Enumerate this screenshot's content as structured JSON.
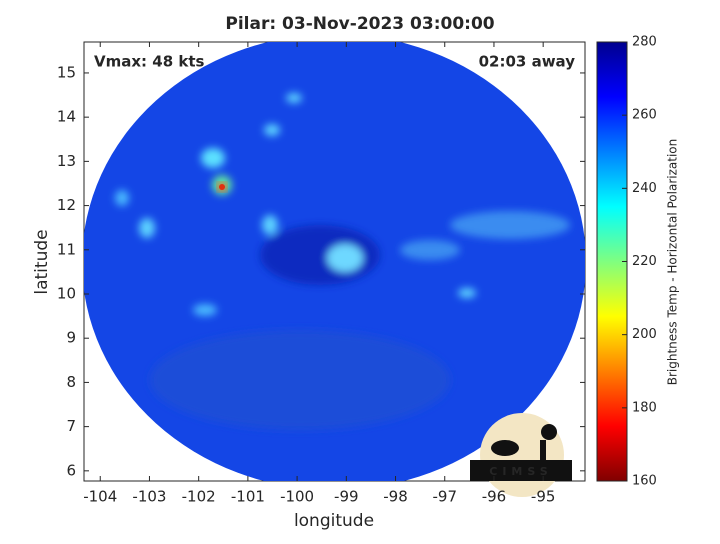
{
  "chart_data": {
    "type": "image-map",
    "title": "Pilar: 03-Nov-2023 03:00:00",
    "annotation_left": "Vmax: 48 kts",
    "annotation_right": "02:03 away",
    "xlabel": "longitude",
    "ylabel": "latitude",
    "xlim": [
      -104.33,
      -94.15
    ],
    "ylim": [
      5.77,
      15.7
    ],
    "xticks": [
      -104,
      -103,
      -102,
      -101,
      -100,
      -99,
      -98,
      -97,
      -96,
      -95
    ],
    "yticks": [
      6,
      7,
      8,
      9,
      10,
      11,
      12,
      13,
      14,
      15
    ],
    "colorbar": {
      "label": "Brightness Temp - Horizontal Polarization",
      "lim": [
        160,
        280
      ],
      "ticks": [
        160,
        180,
        200,
        220,
        240,
        260,
        280
      ]
    },
    "logo_text": "CIMSS"
  }
}
